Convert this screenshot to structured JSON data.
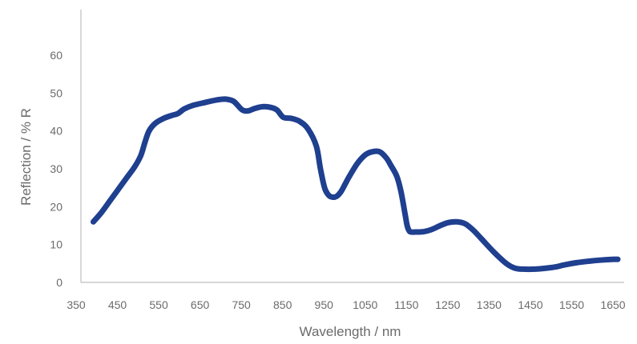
{
  "chart_data": {
    "type": "line",
    "title": "",
    "xlabel": "Wavelength / nm",
    "ylabel": "Reflection / % R",
    "xlim": [
      350,
      1650
    ],
    "ylim": [
      0,
      60
    ],
    "x_ticks": [
      350,
      450,
      550,
      650,
      750,
      850,
      950,
      1050,
      1150,
      1250,
      1350,
      1450,
      1550,
      1650
    ],
    "y_ticks": [
      0,
      10,
      20,
      30,
      40,
      50,
      60
    ],
    "grid": false,
    "legend": "none",
    "line_color": "#1f3f8f",
    "series": [
      {
        "x": [
          380,
          400,
          420,
          440,
          460,
          480,
          495,
          505,
          515,
          530,
          550,
          570,
          585,
          600,
          620,
          650,
          680,
          700,
          720,
          740,
          755,
          770,
          790,
          810,
          825,
          840,
          860,
          880,
          900,
          920,
          930,
          940,
          950,
          960,
          970,
          980,
          990,
          1000,
          1020,
          1040,
          1060,
          1075,
          1090,
          1100,
          1115,
          1125,
          1135,
          1140,
          1145,
          1150,
          1160,
          1180,
          1200,
          1220,
          1240,
          1260,
          1280,
          1300,
          1320,
          1350,
          1380,
          1400,
          1420,
          1450,
          1480,
          1500,
          1520,
          1550,
          1580,
          1610,
          1640,
          1650
        ],
        "values": [
          16,
          18.5,
          21.5,
          24.5,
          27.5,
          30.5,
          33.5,
          37,
          40,
          42,
          43.3,
          44.1,
          44.6,
          45.8,
          46.7,
          47.5,
          48.2,
          48.4,
          47.8,
          45.6,
          45.3,
          45.9,
          46.4,
          46.2,
          45.5,
          43.6,
          43.3,
          42.5,
          40.5,
          36,
          30,
          25,
          23,
          22.5,
          22.8,
          24,
          26,
          28,
          31.5,
          33.8,
          34.6,
          34.4,
          32.8,
          31,
          28,
          24,
          18,
          15,
          13.6,
          13.3,
          13.3,
          13.4,
          14,
          15,
          15.8,
          16,
          15.5,
          13.8,
          11.5,
          8,
          5,
          3.8,
          3.5,
          3.5,
          3.8,
          4.1,
          4.6,
          5.2,
          5.6,
          5.9,
          6.1,
          6.1
        ]
      }
    ]
  }
}
